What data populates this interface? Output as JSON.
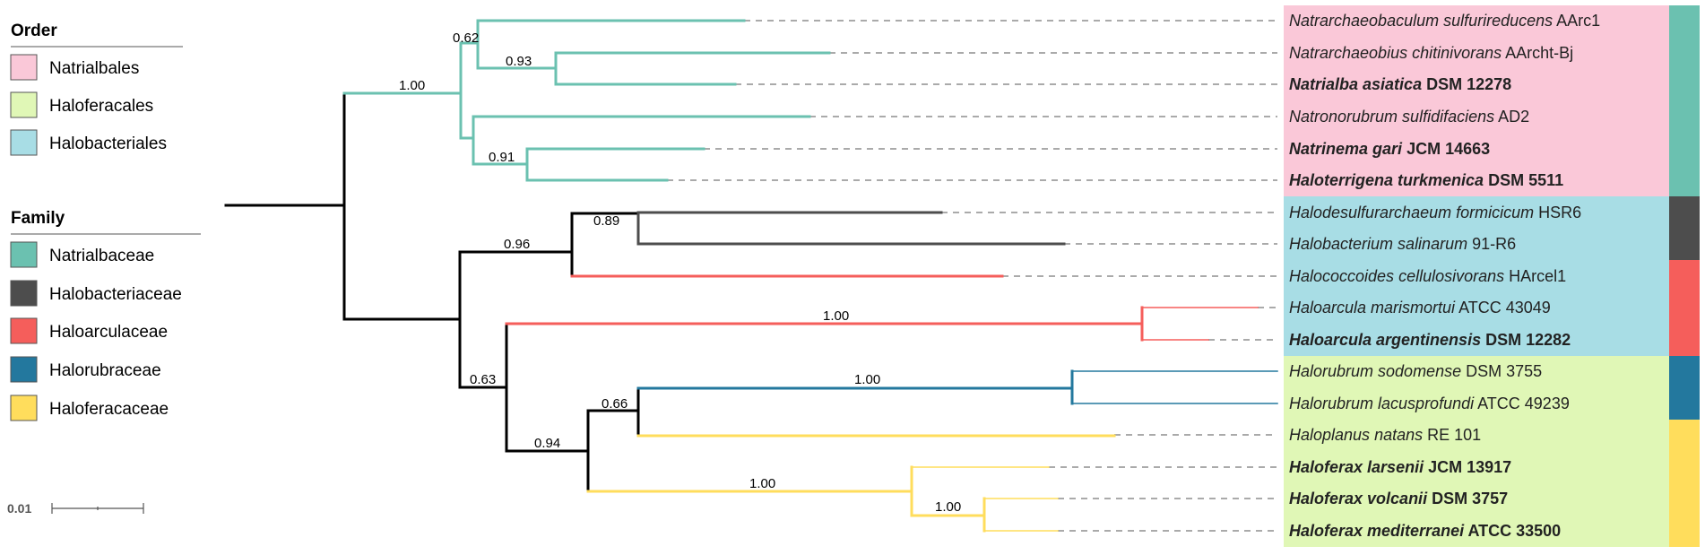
{
  "legend": {
    "order_title": "Order",
    "order_items": [
      {
        "label": "Natrialbales",
        "color": "#FAC8D8"
      },
      {
        "label": "Haloferacales",
        "color": "#E0F7B6"
      },
      {
        "label": "Halobacteriales",
        "color": "#A8DDE5"
      }
    ],
    "family_title": "Family",
    "family_items": [
      {
        "label": "Natrialbaceae",
        "color": "#6BC1B0"
      },
      {
        "label": "Halobacteriaceae",
        "color": "#4D4D4D"
      },
      {
        "label": "Haloarculaceae",
        "color": "#F55E5B"
      },
      {
        "label": "Halorubraceae",
        "color": "#23789E"
      },
      {
        "label": "Haloferacaceae",
        "color": "#FFDD5C"
      }
    ]
  },
  "scale_bar": {
    "label": "0.01"
  },
  "support_values": {
    "s062": "0.62",
    "s093": "0.93",
    "s100a": "1.00",
    "s091": "0.91",
    "s096": "0.96",
    "s089": "0.89",
    "s100b": "1.00",
    "s063": "0.63",
    "s100c": "1.00",
    "s066": "0.66",
    "s094": "0.94",
    "s100d": "1.00",
    "s100e": "1.00"
  },
  "leaves": [
    {
      "genus_species": "Natrarchaeobaculum sulfurireducens",
      "strain": "AArc1",
      "bold": false,
      "order": "Natrialbales",
      "family": "Natrialbaceae"
    },
    {
      "genus_species": "Natrarchaeobius chitinivorans",
      "strain": "AArcht-Bj",
      "bold": false,
      "order": "Natrialbales",
      "family": "Natrialbaceae"
    },
    {
      "genus_species": "Natrialba asiatica",
      "strain": "DSM 12278",
      "bold": true,
      "order": "Natrialbales",
      "family": "Natrialbaceae"
    },
    {
      "genus_species": "Natronorubrum sulfidifaciens",
      "strain": "AD2",
      "bold": false,
      "order": "Natrialbales",
      "family": "Natrialbaceae"
    },
    {
      "genus_species": "Natrinema gari",
      "strain": "JCM 14663",
      "bold": true,
      "order": "Natrialbales",
      "family": "Natrialbaceae"
    },
    {
      "genus_species": "Haloterrigena turkmenica",
      "strain": "DSM 5511",
      "bold": true,
      "order": "Natrialbales",
      "family": "Natrialbaceae"
    },
    {
      "genus_species": "Halodesulfurarchaeum formicicum",
      "strain": "HSR6",
      "bold": false,
      "order": "Halobacteriales",
      "family": "Halobacteriaceae"
    },
    {
      "genus_species": "Halobacterium salinarum",
      "strain": "91-R6",
      "bold": false,
      "order": "Halobacteriales",
      "family": "Halobacteriaceae"
    },
    {
      "genus_species": "Halococcoides cellulosivorans",
      "strain": "HArcel1",
      "bold": false,
      "order": "Halobacteriales",
      "family": "Haloarculaceae"
    },
    {
      "genus_species": "Haloarcula marismortui",
      "strain": "ATCC 43049",
      "bold": false,
      "order": "Halobacteriales",
      "family": "Haloarculaceae"
    },
    {
      "genus_species": "Haloarcula argentinensis",
      "strain": "DSM 12282",
      "bold": true,
      "order": "Halobacteriales",
      "family": "Haloarculaceae"
    },
    {
      "genus_species": "Halorubrum sodomense",
      "strain": "DSM 3755",
      "bold": false,
      "order": "Haloferacales",
      "family": "Halorubraceae"
    },
    {
      "genus_species": "Halorubrum lacusprofundi",
      "strain": "ATCC 49239",
      "bold": false,
      "order": "Haloferacales",
      "family": "Halorubraceae"
    },
    {
      "genus_species": "Haloplanus natans",
      "strain": "RE 101",
      "bold": false,
      "order": "Haloferacales",
      "family": "Haloferacaceae"
    },
    {
      "genus_species": "Haloferax larsenii",
      "strain": "JCM 13917",
      "bold": true,
      "order": "Haloferacales",
      "family": "Haloferacaceae"
    },
    {
      "genus_species": "Haloferax volcanii",
      "strain": "DSM 3757",
      "bold": true,
      "order": "Haloferacales",
      "family": "Haloferacaceae"
    },
    {
      "genus_species": "Haloferax mediterranei",
      "strain": "ATCC 33500",
      "bold": true,
      "order": "Haloferacales",
      "family": "Haloferacaceae"
    }
  ]
}
